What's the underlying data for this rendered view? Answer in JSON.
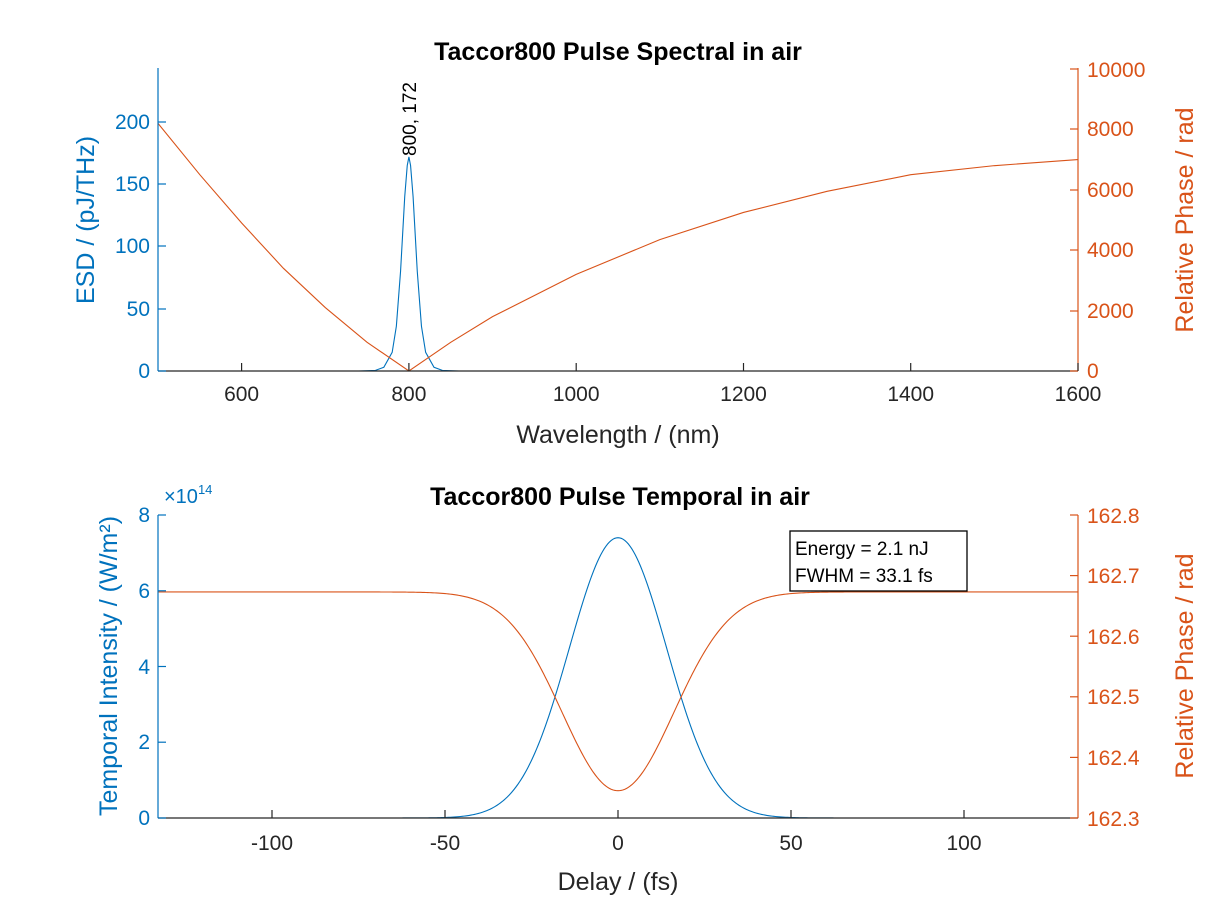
{
  "colors": {
    "esd": "#0072BD",
    "phase": "#D95319",
    "axis": "#262626",
    "text": "#000000"
  },
  "chart_data": [
    {
      "type": "line",
      "title": "Taccor800 Pulse Spectral in air",
      "xlabel": "Wavelength / (nm)",
      "ylabel_left": "ESD / (pJ/THz)",
      "ylabel_right": "Relative Phase / rad",
      "xlim": [
        500,
        1600
      ],
      "ylim_left": [
        0,
        240
      ],
      "ylim_right": [
        0,
        10000
      ],
      "xticks": [
        "600",
        "800",
        "1000",
        "1200",
        "1400",
        "1600"
      ],
      "yticks_left": [
        "0",
        "50",
        "100",
        "150",
        "200"
      ],
      "yticks_right": [
        "0",
        "2000",
        "4000",
        "6000",
        "8000",
        "10000"
      ],
      "data_label": "800, 172",
      "grid": false,
      "series": [
        {
          "axis": "left",
          "x": [
            500,
            700,
            740,
            760,
            770,
            780,
            785,
            790,
            795,
            798,
            800,
            802,
            805,
            810,
            815,
            820,
            830,
            840,
            860,
            900,
            1000,
            1200,
            1400,
            1600
          ],
          "y": [
            0,
            0,
            0,
            0.5,
            3,
            15,
            36,
            80,
            140,
            165,
            172,
            165,
            140,
            80,
            36,
            15,
            3,
            0.5,
            0,
            0,
            0,
            0,
            0,
            0
          ]
        },
        {
          "axis": "right",
          "x": [
            500,
            550,
            600,
            650,
            700,
            750,
            800,
            850,
            900,
            1000,
            1100,
            1200,
            1300,
            1400,
            1500,
            1600
          ],
          "y": [
            8200,
            6500,
            4900,
            3400,
            2100,
            950,
            0,
            950,
            1800,
            3200,
            4350,
            5250,
            5950,
            6500,
            6800,
            7000
          ]
        }
      ]
    },
    {
      "type": "line",
      "title": "Taccor800 Pulse Temporal in air",
      "xlabel": "Delay / (fs)",
      "ylabel_left": "Temporal Intensity / (W/m²)",
      "ylabel_right": "Relative Phase / rad",
      "left_exponent_base": "×10",
      "left_exponent_power": "14",
      "xlim": [
        -133,
        133
      ],
      "ylim_left": [
        0,
        8
      ],
      "ylim_right": [
        162.3,
        162.8
      ],
      "xticks": [
        "-100",
        "-50",
        "0",
        "50",
        "100"
      ],
      "yticks_left": [
        "0",
        "2",
        "4",
        "6",
        "8"
      ],
      "yticks_right": [
        "162.3",
        "162.4",
        "162.5",
        "162.6",
        "162.7",
        "162.8"
      ],
      "annotation": [
        "Energy = 2.1 nJ",
        "FWHM = 33.1 fs"
      ],
      "grid": false,
      "series": [
        {
          "axis": "left",
          "peak": 7.4,
          "center": 0,
          "fwhm": 33.1
        },
        {
          "axis": "right",
          "baseline": 162.673,
          "dip": 162.345,
          "center": 0,
          "dip_fwhm": 38
        }
      ]
    }
  ]
}
